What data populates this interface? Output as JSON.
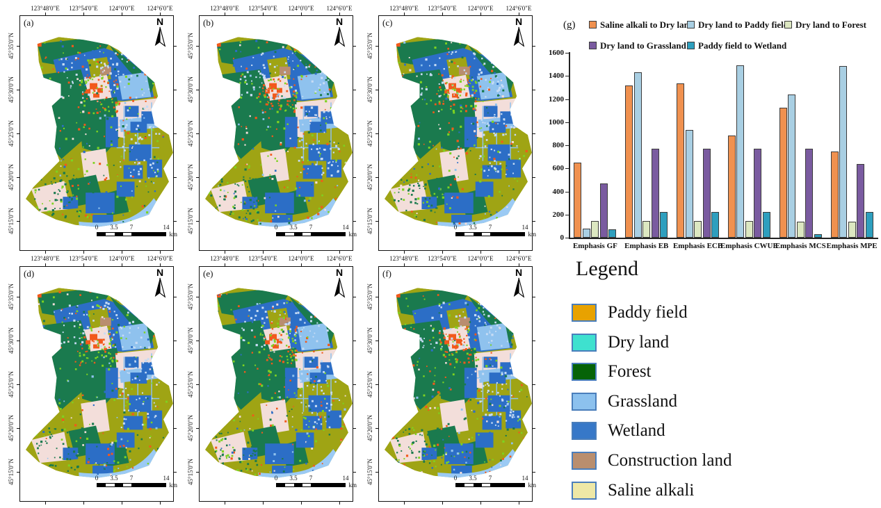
{
  "figure": {
    "panel_g_label": "(g)"
  },
  "maps": {
    "panel_letters": [
      "(a)",
      "(b)",
      "(c)",
      "(d)",
      "(e)",
      "(f)"
    ],
    "north_label": "N",
    "top_axis_labels": [
      "123°48'0\"E",
      "123°54'0\"E",
      "124°0'0\"E",
      "124°6'0\"E"
    ],
    "left_axis_labels": [
      "45°35'0\"N",
      "45°30'0\"N",
      "45°25'0\"N",
      "45°20'0\"N",
      "45°15'0\"N"
    ],
    "scalebar_labels": [
      "0",
      "3.5",
      "7",
      "14"
    ],
    "scalebar_unit": "km",
    "colors": {
      "olive": "#9FA414",
      "forest": "#1A7A4E",
      "pink": "#F3DEDA",
      "wetland": "#2C6EC6",
      "grassland": "#8FC2EE",
      "river": "#9BCAF4",
      "paddy_orange": "#F2591B",
      "bright_green": "#7ED321",
      "construction": "#B98D6F",
      "speckle_light": "#C7DCF5"
    }
  },
  "chart_data": {
    "type": "bar",
    "title": "",
    "categories": [
      "Emphasis GF",
      "Emphasis EB",
      "Emphasis ECB",
      "Emphasis CWUE",
      "Emphasis MCS",
      "Emphasis MPE"
    ],
    "series": [
      {
        "name": "Saline alkali  to Dry land",
        "color": "#F0914F",
        "values": [
          650,
          1320,
          1335,
          885,
          1125,
          748
        ]
      },
      {
        "name": "Dry land to Paddy field",
        "color": "#A9CFE3",
        "values": [
          78,
          1430,
          935,
          1490,
          1238,
          1483
        ]
      },
      {
        "name": "Dry land to Forest",
        "color": "#DCE7C1",
        "values": [
          143,
          143,
          143,
          143,
          140,
          140
        ]
      },
      {
        "name": "Dry land to Grassland",
        "color": "#7A5BA0",
        "values": [
          470,
          770,
          770,
          770,
          768,
          635
        ]
      },
      {
        "name": "Paddy field to Wetland",
        "color": "#2E9FBE",
        "values": [
          75,
          222,
          225,
          225,
          30,
          225
        ]
      }
    ],
    "yticks": [
      "0",
      "200",
      "400",
      "600",
      "800",
      "1000",
      "1200",
      "1400",
      "1600"
    ],
    "ylim": [
      0,
      1600
    ],
    "grid": false,
    "legend_position": "top"
  },
  "legend": {
    "title": "Legend",
    "swatch_border_color": "#4a7ebb",
    "items": [
      {
        "label": "Paddy field",
        "color": "#E8A200"
      },
      {
        "label": "Dry land",
        "color": "#3EE1CF"
      },
      {
        "label": "Forest",
        "color": "#066307"
      },
      {
        "label": "Grassland",
        "color": "#8CC1EE"
      },
      {
        "label": "Wetland",
        "color": "#3778C8"
      },
      {
        "label": "Construction land",
        "color": "#B98E6E"
      },
      {
        "label": "Saline alkali",
        "color": "#EEE8A6"
      }
    ]
  }
}
